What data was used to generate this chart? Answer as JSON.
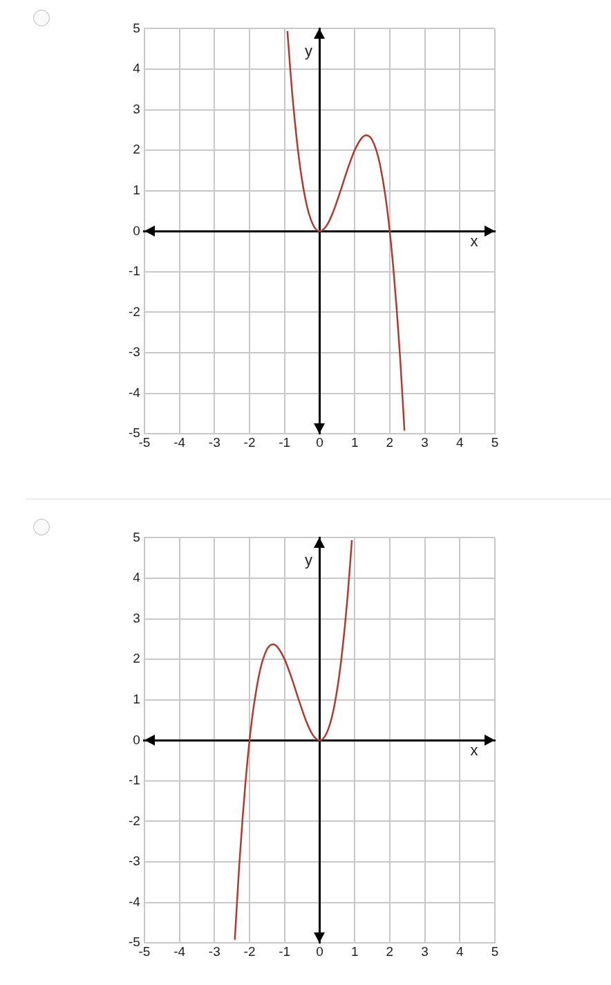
{
  "chart_data": [
    {
      "type": "line",
      "xlabel": "x",
      "ylabel": "y",
      "xlim": [
        -5,
        5
      ],
      "ylim": [
        -5,
        5
      ],
      "xticks": [
        -5,
        -4,
        -3,
        -2,
        -1,
        0,
        1,
        2,
        3,
        4,
        5
      ],
      "yticks": [
        -5,
        -4,
        -3,
        -2,
        -1,
        0,
        1,
        2,
        3,
        4,
        5
      ],
      "grid": true,
      "legend": false,
      "marker": "none",
      "series": [
        {
          "color": "#b03a2e",
          "x": [
            -0.92,
            -0.8,
            -0.6,
            -0.4,
            -0.2,
            0,
            0.2,
            0.4,
            0.6,
            0.8,
            1.0,
            1.2,
            1.33,
            1.5,
            1.7,
            1.9,
            2.0,
            2.1,
            2.2,
            2.3,
            2.42
          ],
          "values": [
            4.94,
            3.58,
            1.87,
            0.77,
            0.18,
            0,
            0.14,
            0.51,
            1.01,
            1.54,
            2.0,
            2.3,
            2.37,
            2.25,
            1.73,
            0.72,
            0,
            -0.88,
            -1.94,
            -3.17,
            -4.92
          ]
        }
      ]
    },
    {
      "type": "line",
      "xlabel": "x",
      "ylabel": "y",
      "xlim": [
        -5,
        5
      ],
      "ylim": [
        -5,
        5
      ],
      "xticks": [
        -5,
        -4,
        -3,
        -2,
        -1,
        0,
        1,
        2,
        3,
        4,
        5
      ],
      "yticks": [
        -5,
        -4,
        -3,
        -2,
        -1,
        0,
        1,
        2,
        3,
        4,
        5
      ],
      "grid": true,
      "legend": false,
      "marker": "none",
      "series": [
        {
          "color": "#b03a2e",
          "x": [
            -2.42,
            -2.3,
            -2.2,
            -2.1,
            -2.0,
            -1.9,
            -1.7,
            -1.5,
            -1.33,
            -1.2,
            -1.0,
            -0.8,
            -0.6,
            -0.4,
            -0.2,
            0,
            0.2,
            0.4,
            0.6,
            0.8,
            0.92
          ],
          "values": [
            -4.92,
            -3.17,
            -1.94,
            -0.88,
            0,
            0.72,
            1.73,
            2.25,
            2.37,
            2.3,
            2.0,
            1.54,
            1.01,
            0.51,
            0.14,
            0,
            0.18,
            0.77,
            1.87,
            3.58,
            4.94
          ]
        }
      ]
    }
  ]
}
